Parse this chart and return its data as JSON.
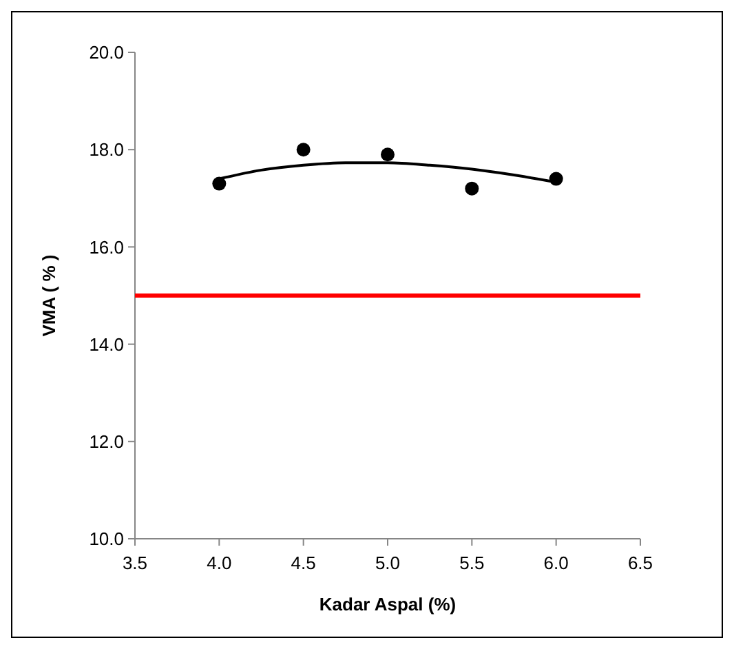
{
  "chart_data": {
    "type": "scatter",
    "xlabel": "Kadar Aspal (%)",
    "ylabel": "VMA ( % )",
    "xlim": [
      3.5,
      6.5
    ],
    "xticks": [
      {
        "value": 3.5,
        "label": "3.5"
      },
      {
        "value": 4,
        "label": "4.0"
      },
      {
        "value": 4.5,
        "label": "4.5"
      },
      {
        "value": 5,
        "label": "5.0"
      },
      {
        "value": 5.5,
        "label": "5.5"
      },
      {
        "value": 6,
        "label": "6.0"
      },
      {
        "value": 6.5,
        "label": "6.5"
      }
    ],
    "ylim": [
      10,
      20
    ],
    "yticks": [
      {
        "value": 10,
        "label": "10.0"
      },
      {
        "value": 12,
        "label": "12.0"
      },
      {
        "value": 14,
        "label": "14.0"
      },
      {
        "value": 16,
        "label": "16.0"
      },
      {
        "value": 18,
        "label": "18.0"
      },
      {
        "value": 20,
        "label": "20.0"
      }
    ],
    "grid": false,
    "marker": "circle",
    "series": [
      {
        "color": "#000000",
        "x": [
          4,
          4.5,
          5,
          5.5,
          6
        ],
        "values": [
          17.3,
          18.0,
          17.9,
          17.2,
          17.4
        ]
      },
      {
        "type": "line",
        "color": "#000000",
        "marker": "none",
        "x": [
          4,
          4.25,
          4.5,
          4.75,
          5,
          5.25,
          5.5,
          5.75,
          6
        ],
        "values": [
          17.4,
          17.58,
          17.68,
          17.73,
          17.73,
          17.68,
          17.6,
          17.48,
          17.33
        ]
      }
    ],
    "ref_lines": [
      {
        "axis": "y",
        "value": 15,
        "color": "#ff0000"
      }
    ]
  }
}
